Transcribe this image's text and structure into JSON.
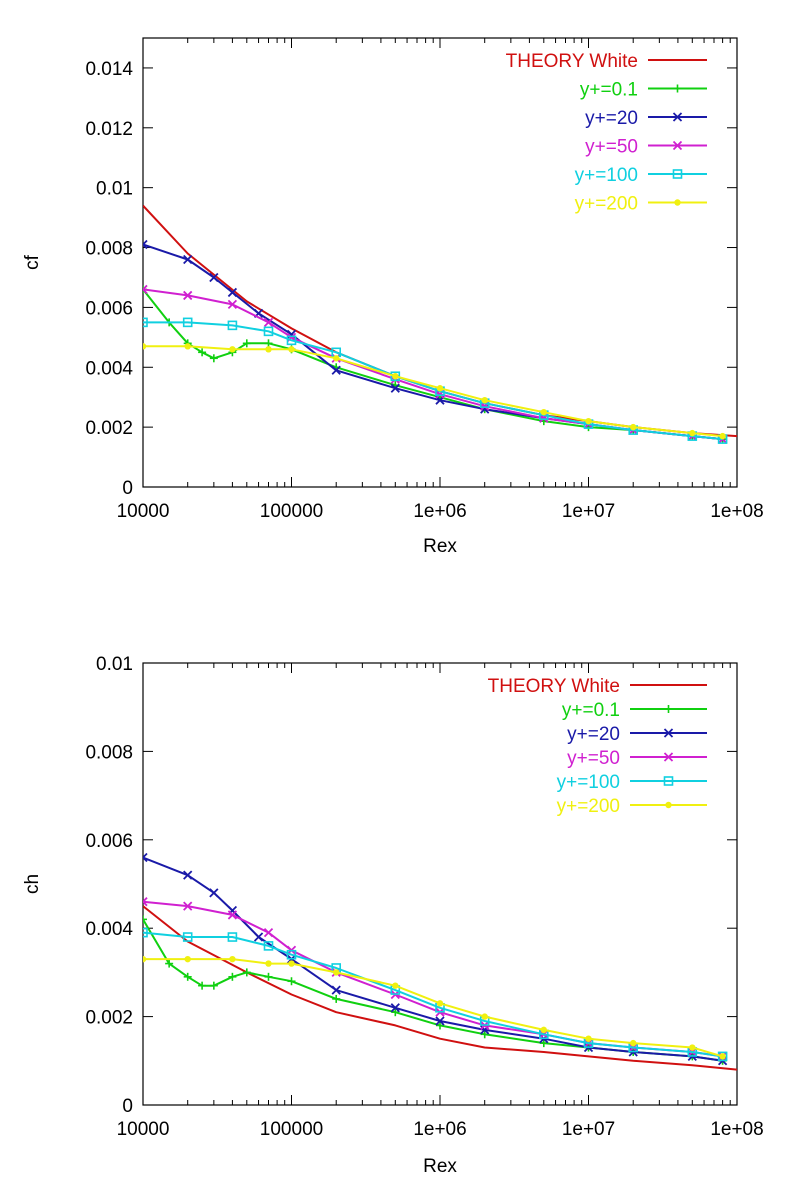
{
  "chart_data": [
    {
      "type": "line",
      "xlabel": "Rex",
      "ylabel": "cf",
      "xscale": "log",
      "xlim": [
        10000,
        100000000
      ],
      "ylim": [
        0,
        0.015
      ],
      "xticks": [
        10000,
        100000,
        1000000,
        10000000,
        100000000
      ],
      "xtick_labels": [
        "10000",
        "100000",
        "1e+06",
        "1e+07",
        "1e+08"
      ],
      "yticks": [
        0,
        0.002,
        0.004,
        0.006,
        0.008,
        0.01,
        0.012,
        0.014
      ],
      "ytick_labels": [
        "0",
        "0.002",
        "0.004",
        "0.006",
        "0.008",
        "0.01",
        "0.012",
        "0.014"
      ],
      "grid": false,
      "legend": "top-right",
      "series": [
        {
          "name": "THEORY White",
          "color": "#d01010",
          "marker": "none",
          "x": [
            10000,
            20000,
            50000,
            100000,
            200000,
            500000,
            1000000,
            2000000,
            5000000,
            10000000,
            20000000,
            50000000,
            100000000
          ],
          "y": [
            0.0094,
            0.0078,
            0.0062,
            0.0053,
            0.0045,
            0.0037,
            0.0032,
            0.0028,
            0.0024,
            0.0022,
            0.002,
            0.0018,
            0.0017
          ]
        },
        {
          "name": "y+=0.1",
          "color": "#10d010",
          "marker": "plus",
          "x": [
            10000,
            15000,
            20000,
            25000,
            30000,
            40000,
            50000,
            70000,
            100000,
            200000,
            500000,
            1000000,
            2000000,
            5000000,
            10000000,
            20000000,
            50000000,
            80000000
          ],
          "y": [
            0.0066,
            0.0055,
            0.0048,
            0.0045,
            0.0043,
            0.0045,
            0.0048,
            0.0048,
            0.0046,
            0.004,
            0.0034,
            0.003,
            0.0026,
            0.0022,
            0.002,
            0.0019,
            0.0017,
            0.0016
          ]
        },
        {
          "name": "y+=20",
          "color": "#1a1aa8",
          "marker": "x",
          "x": [
            10000,
            20000,
            30000,
            40000,
            60000,
            100000,
            200000,
            500000,
            1000000,
            2000000,
            5000000,
            10000000,
            20000000,
            50000000,
            80000000
          ],
          "y": [
            0.0081,
            0.0076,
            0.007,
            0.0065,
            0.0058,
            0.0051,
            0.0039,
            0.0033,
            0.0029,
            0.0026,
            0.0023,
            0.0021,
            0.0019,
            0.0017,
            0.0016
          ]
        },
        {
          "name": "y+=50",
          "color": "#d020d0",
          "marker": "x",
          "x": [
            10000,
            20000,
            40000,
            70000,
            100000,
            200000,
            500000,
            1000000,
            2000000,
            5000000,
            10000000,
            20000000,
            50000000,
            80000000
          ],
          "y": [
            0.0066,
            0.0064,
            0.0061,
            0.0055,
            0.005,
            0.0043,
            0.0036,
            0.0031,
            0.0027,
            0.0023,
            0.0021,
            0.0019,
            0.0017,
            0.0016
          ]
        },
        {
          "name": "y+=100",
          "color": "#10d0e0",
          "marker": "square",
          "x": [
            10000,
            20000,
            40000,
            70000,
            100000,
            200000,
            500000,
            1000000,
            2000000,
            5000000,
            10000000,
            20000000,
            50000000,
            80000000
          ],
          "y": [
            0.0055,
            0.0055,
            0.0054,
            0.0052,
            0.0049,
            0.0045,
            0.0037,
            0.0032,
            0.0028,
            0.0024,
            0.0021,
            0.0019,
            0.0017,
            0.0016
          ]
        },
        {
          "name": "y+=200",
          "color": "#f0f010",
          "marker": "dot",
          "x": [
            10000,
            20000,
            40000,
            70000,
            100000,
            200000,
            500000,
            1000000,
            2000000,
            5000000,
            10000000,
            20000000,
            50000000,
            80000000
          ],
          "y": [
            0.0047,
            0.0047,
            0.0046,
            0.0046,
            0.0046,
            0.0043,
            0.0037,
            0.0033,
            0.0029,
            0.0025,
            0.0022,
            0.002,
            0.0018,
            0.0017
          ]
        }
      ]
    },
    {
      "type": "line",
      "xlabel": "Rex",
      "ylabel": "ch",
      "xscale": "log",
      "xlim": [
        10000,
        100000000
      ],
      "ylim": [
        0,
        0.01
      ],
      "xticks": [
        10000,
        100000,
        1000000,
        10000000,
        100000000
      ],
      "xtick_labels": [
        "10000",
        "100000",
        "1e+06",
        "1e+07",
        "1e+08"
      ],
      "yticks": [
        0,
        0.002,
        0.004,
        0.006,
        0.008,
        0.01
      ],
      "ytick_labels": [
        "0",
        "0.002",
        "0.004",
        "0.006",
        "0.008",
        "0.01"
      ],
      "grid": false,
      "legend": "top-right",
      "series": [
        {
          "name": "THEORY White",
          "color": "#d01010",
          "marker": "none",
          "x": [
            10000,
            20000,
            50000,
            100000,
            200000,
            500000,
            1000000,
            2000000,
            5000000,
            10000000,
            20000000,
            50000000,
            100000000
          ],
          "y": [
            0.0045,
            0.0037,
            0.003,
            0.0025,
            0.0021,
            0.0018,
            0.0015,
            0.0013,
            0.0012,
            0.0011,
            0.001,
            0.0009,
            0.0008
          ]
        },
        {
          "name": "y+=0.1",
          "color": "#10d010",
          "marker": "plus",
          "x": [
            10000,
            15000,
            20000,
            25000,
            30000,
            40000,
            50000,
            70000,
            100000,
            200000,
            500000,
            1000000,
            2000000,
            5000000,
            10000000,
            20000000,
            50000000,
            80000000
          ],
          "y": [
            0.0042,
            0.0032,
            0.0029,
            0.0027,
            0.0027,
            0.0029,
            0.003,
            0.0029,
            0.0028,
            0.0024,
            0.0021,
            0.0018,
            0.0016,
            0.0014,
            0.0013,
            0.0012,
            0.0011,
            0.001
          ]
        },
        {
          "name": "y+=20",
          "color": "#1a1aa8",
          "marker": "x",
          "x": [
            10000,
            20000,
            30000,
            40000,
            60000,
            100000,
            200000,
            500000,
            1000000,
            2000000,
            5000000,
            10000000,
            20000000,
            50000000,
            80000000
          ],
          "y": [
            0.0056,
            0.0052,
            0.0048,
            0.0044,
            0.0038,
            0.0033,
            0.0026,
            0.0022,
            0.0019,
            0.0017,
            0.0015,
            0.0013,
            0.0012,
            0.0011,
            0.001
          ]
        },
        {
          "name": "y+=50",
          "color": "#d020d0",
          "marker": "x",
          "x": [
            10000,
            20000,
            40000,
            70000,
            100000,
            200000,
            500000,
            1000000,
            2000000,
            5000000,
            10000000,
            20000000,
            50000000,
            80000000
          ],
          "y": [
            0.0046,
            0.0045,
            0.0043,
            0.0039,
            0.0035,
            0.003,
            0.0025,
            0.0021,
            0.0018,
            0.0016,
            0.0014,
            0.0013,
            0.0012,
            0.0011
          ]
        },
        {
          "name": "y+=100",
          "color": "#10d0e0",
          "marker": "square",
          "x": [
            10000,
            20000,
            40000,
            70000,
            100000,
            200000,
            500000,
            1000000,
            2000000,
            5000000,
            10000000,
            20000000,
            50000000,
            80000000
          ],
          "y": [
            0.0039,
            0.0038,
            0.0038,
            0.0036,
            0.0034,
            0.0031,
            0.0026,
            0.0022,
            0.0019,
            0.0016,
            0.0014,
            0.0013,
            0.0012,
            0.0011
          ]
        },
        {
          "name": "y+=200",
          "color": "#f0f010",
          "marker": "dot",
          "x": [
            10000,
            20000,
            40000,
            70000,
            100000,
            200000,
            500000,
            1000000,
            2000000,
            5000000,
            10000000,
            20000000,
            50000000,
            80000000
          ],
          "y": [
            0.0033,
            0.0033,
            0.0033,
            0.0032,
            0.0032,
            0.003,
            0.0027,
            0.0023,
            0.002,
            0.0017,
            0.0015,
            0.0014,
            0.0013,
            0.0011
          ]
        }
      ]
    }
  ]
}
